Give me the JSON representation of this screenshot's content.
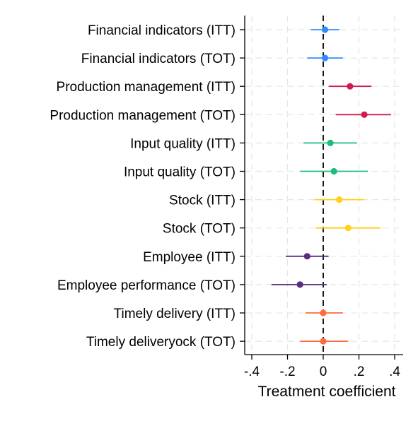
{
  "chart_data": {
    "type": "scatter",
    "subtype": "coefficient-plot",
    "xlabel": "Treatment coefficient",
    "xlim": [
      -0.45,
      0.45
    ],
    "xticks": [
      -0.4,
      -0.2,
      0,
      0.2,
      0.4
    ],
    "xtick_labels": [
      "-.4",
      "-.2",
      "0",
      ".2",
      ".4"
    ],
    "reference_line": 0,
    "grid": true,
    "items": [
      {
        "label": "Financial indicators (ITT)",
        "estimate": 0.01,
        "ci": [
          -0.07,
          0.09
        ],
        "color": "#2E8BFF"
      },
      {
        "label": "Financial indicators (TOT)",
        "estimate": 0.01,
        "ci": [
          -0.09,
          0.11
        ],
        "color": "#2E8BFF"
      },
      {
        "label": "Production management (ITT)",
        "estimate": 0.15,
        "ci": [
          0.03,
          0.27
        ],
        "color": "#D11A4E"
      },
      {
        "label": "Production management (TOT)",
        "estimate": 0.23,
        "ci": [
          0.07,
          0.38
        ],
        "color": "#D11A4E"
      },
      {
        "label": "Input quality (ITT)",
        "estimate": 0.04,
        "ci": [
          -0.11,
          0.19
        ],
        "color": "#1DBE7C"
      },
      {
        "label": "Input quality (TOT)",
        "estimate": 0.06,
        "ci": [
          -0.13,
          0.25
        ],
        "color": "#1DBE7C"
      },
      {
        "label": "Stock (ITT)",
        "estimate": 0.09,
        "ci": [
          -0.05,
          0.23
        ],
        "color": "#FFD11A"
      },
      {
        "label": "Stock (TOT)",
        "estimate": 0.14,
        "ci": [
          -0.04,
          0.32
        ],
        "color": "#FFD11A"
      },
      {
        "label": "Employee (ITT)",
        "estimate": -0.09,
        "ci": [
          -0.21,
          0.03
        ],
        "color": "#5A2D82"
      },
      {
        "label": "Employee performance (TOT)",
        "estimate": -0.13,
        "ci": [
          -0.29,
          0.02
        ],
        "color": "#5A2D82"
      },
      {
        "label": "Timely delivery (ITT)",
        "estimate": 0.0,
        "ci": [
          -0.1,
          0.11
        ],
        "color": "#FF6B3D"
      },
      {
        "label": "Timely deliveryock (TOT)",
        "estimate": 0.0,
        "ci": [
          -0.13,
          0.14
        ],
        "color": "#FF6B3D"
      }
    ]
  }
}
